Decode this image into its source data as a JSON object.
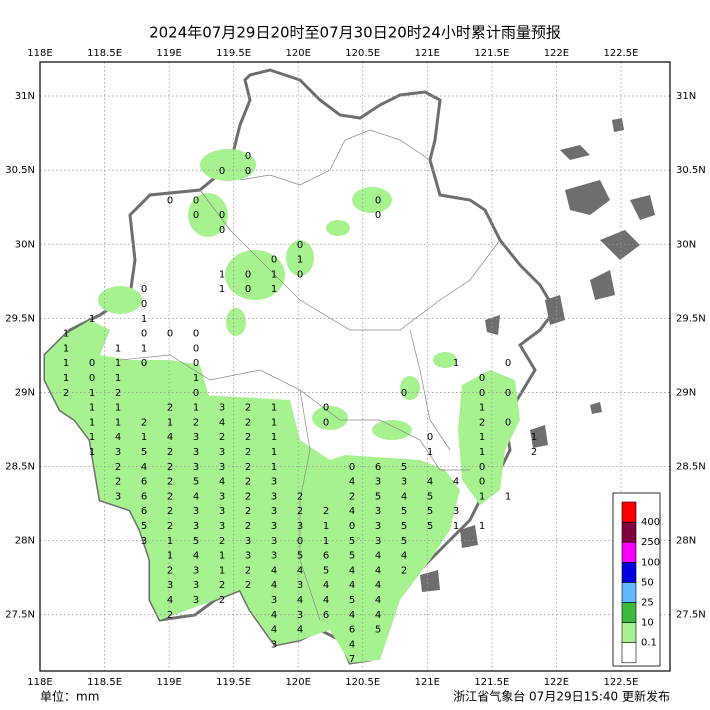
{
  "title": "2024年07月29日20时至07月30日20时24小时累计雨量预报",
  "unit_label": "单位：mm",
  "issuer": "浙江省气象台 07月29日15:40 更新发布",
  "map": {
    "xlim": [
      118,
      122.88
    ],
    "ylim": [
      27.12,
      31.23
    ],
    "xticks": [
      {
        "value": 118,
        "label": "118E"
      },
      {
        "value": 118.5,
        "label": "118.5E"
      },
      {
        "value": 119,
        "label": "119E"
      },
      {
        "value": 119.5,
        "label": "119.5E"
      },
      {
        "value": 120,
        "label": "120E"
      },
      {
        "value": 120.5,
        "label": "120.5E"
      },
      {
        "value": 121,
        "label": "121E"
      },
      {
        "value": 121.5,
        "label": "121.5E"
      },
      {
        "value": 122,
        "label": "122E"
      },
      {
        "value": 122.5,
        "label": "122.5E"
      }
    ],
    "yticks": [
      {
        "value": 27.5,
        "label": "27.5N"
      },
      {
        "value": 28,
        "label": "28N"
      },
      {
        "value": 28.5,
        "label": "28.5N"
      },
      {
        "value": 29,
        "label": "29N"
      },
      {
        "value": 29.5,
        "label": "29.5N"
      },
      {
        "value": 30,
        "label": "30N"
      },
      {
        "value": 30.5,
        "label": "30.5N"
      },
      {
        "value": 31,
        "label": "31N"
      }
    ],
    "grid": true,
    "rain_grid": [
      [
        null,
        null,
        null,
        null,
        null,
        null,
        null,
        0,
        null,
        null,
        null,
        null,
        null,
        null,
        null,
        null,
        null,
        null,
        null
      ],
      [
        null,
        null,
        null,
        null,
        null,
        null,
        0,
        0,
        null,
        null,
        null,
        null,
        null,
        null,
        null,
        null,
        null,
        null,
        null
      ],
      [
        null,
        null,
        null,
        null,
        null,
        null,
        null,
        null,
        null,
        null,
        null,
        null,
        null,
        null,
        null,
        null,
        null,
        null,
        null
      ],
      [
        null,
        null,
        null,
        null,
        0,
        0,
        null,
        null,
        null,
        null,
        null,
        null,
        0,
        null,
        null,
        null,
        null,
        null,
        null
      ],
      [
        null,
        null,
        null,
        null,
        null,
        0,
        0,
        null,
        null,
        null,
        null,
        null,
        0,
        null,
        null,
        null,
        null,
        null,
        null
      ],
      [
        null,
        null,
        null,
        null,
        null,
        null,
        0,
        null,
        null,
        null,
        null,
        null,
        null,
        null,
        null,
        null,
        null,
        null,
        null
      ],
      [
        null,
        null,
        null,
        null,
        null,
        null,
        null,
        null,
        null,
        0,
        null,
        null,
        null,
        null,
        null,
        null,
        null,
        null,
        null
      ],
      [
        null,
        null,
        null,
        null,
        null,
        null,
        null,
        null,
        0,
        1,
        null,
        null,
        null,
        null,
        null,
        null,
        null,
        null,
        null
      ],
      [
        null,
        null,
        null,
        null,
        null,
        null,
        1,
        0,
        1,
        0,
        null,
        null,
        null,
        null,
        null,
        null,
        null,
        null,
        null
      ],
      [
        null,
        null,
        null,
        0,
        null,
        null,
        1,
        0,
        1,
        null,
        null,
        null,
        null,
        null,
        null,
        null,
        null,
        null,
        null
      ],
      [
        null,
        null,
        null,
        0,
        null,
        null,
        null,
        null,
        null,
        null,
        null,
        null,
        null,
        null,
        null,
        null,
        null,
        null,
        null
      ],
      [
        null,
        1,
        null,
        1,
        null,
        null,
        null,
        null,
        null,
        null,
        null,
        null,
        null,
        null,
        null,
        null,
        null,
        null,
        null
      ],
      [
        1,
        null,
        null,
        0,
        0,
        0,
        null,
        null,
        null,
        null,
        null,
        null,
        null,
        null,
        null,
        null,
        null,
        null,
        null
      ],
      [
        1,
        null,
        1,
        1,
        null,
        0,
        null,
        null,
        null,
        null,
        null,
        null,
        null,
        null,
        null,
        null,
        null,
        null,
        null
      ],
      [
        1,
        0,
        1,
        0,
        null,
        0,
        null,
        null,
        null,
        null,
        null,
        null,
        null,
        null,
        null,
        1,
        null,
        0,
        null
      ],
      [
        1,
        0,
        1,
        null,
        null,
        1,
        null,
        null,
        null,
        null,
        null,
        null,
        null,
        null,
        null,
        null,
        0,
        null,
        null
      ],
      [
        2,
        1,
        2,
        null,
        null,
        0,
        null,
        null,
        null,
        null,
        null,
        null,
        null,
        0,
        null,
        null,
        0,
        0,
        null
      ],
      [
        null,
        1,
        1,
        null,
        2,
        1,
        3,
        2,
        1,
        null,
        0,
        null,
        null,
        null,
        null,
        null,
        1,
        null,
        null
      ],
      [
        null,
        1,
        1,
        2,
        1,
        2,
        4,
        2,
        1,
        null,
        0,
        null,
        null,
        null,
        null,
        null,
        2,
        0,
        null
      ],
      [
        null,
        1,
        4,
        1,
        4,
        3,
        2,
        2,
        1,
        null,
        null,
        null,
        null,
        null,
        0,
        null,
        1,
        null,
        1
      ],
      [
        null,
        1,
        3,
        5,
        2,
        3,
        3,
        2,
        1,
        null,
        null,
        null,
        null,
        null,
        1,
        null,
        1,
        null,
        2
      ],
      [
        null,
        null,
        2,
        4,
        2,
        3,
        3,
        2,
        1,
        null,
        null,
        0,
        6,
        5,
        null,
        null,
        0,
        null,
        null
      ],
      [
        null,
        null,
        2,
        6,
        2,
        5,
        4,
        2,
        3,
        null,
        null,
        4,
        3,
        3,
        4,
        4,
        0,
        null,
        null
      ],
      [
        null,
        null,
        3,
        6,
        2,
        4,
        3,
        2,
        3,
        2,
        null,
        2,
        5,
        4,
        5,
        null,
        1,
        1,
        null
      ],
      [
        null,
        null,
        null,
        6,
        2,
        3,
        3,
        2,
        3,
        2,
        2,
        4,
        3,
        5,
        5,
        3,
        null,
        null,
        null
      ],
      [
        null,
        null,
        null,
        5,
        2,
        3,
        3,
        2,
        3,
        3,
        1,
        0,
        3,
        5,
        5,
        1,
        1,
        null,
        null
      ],
      [
        null,
        null,
        null,
        3,
        1,
        5,
        2,
        3,
        3,
        0,
        1,
        5,
        3,
        5,
        null,
        null,
        null,
        null,
        null
      ],
      [
        null,
        null,
        null,
        null,
        1,
        4,
        1,
        3,
        3,
        5,
        6,
        5,
        4,
        4,
        null,
        null,
        null,
        null,
        null
      ],
      [
        null,
        null,
        null,
        null,
        2,
        3,
        1,
        2,
        4,
        4,
        5,
        4,
        4,
        2,
        null,
        null,
        null,
        null,
        null
      ],
      [
        null,
        null,
        null,
        null,
        3,
        3,
        2,
        2,
        4,
        3,
        4,
        4,
        4,
        null,
        null,
        null,
        null,
        null,
        null
      ],
      [
        null,
        null,
        null,
        null,
        4,
        3,
        2,
        null,
        3,
        4,
        4,
        5,
        4,
        null,
        null,
        null,
        null,
        null,
        null
      ],
      [
        null,
        null,
        null,
        null,
        2,
        null,
        null,
        null,
        4,
        3,
        6,
        4,
        4,
        null,
        null,
        null,
        null,
        null,
        null
      ],
      [
        null,
        null,
        null,
        null,
        null,
        null,
        null,
        null,
        4,
        4,
        null,
        6,
        5,
        null,
        null,
        null,
        null,
        null,
        null
      ],
      [
        null,
        null,
        null,
        null,
        null,
        null,
        null,
        null,
        3,
        null,
        null,
        4,
        null,
        null,
        null,
        null,
        null,
        null,
        null
      ],
      [
        null,
        null,
        null,
        null,
        null,
        null,
        null,
        null,
        null,
        null,
        null,
        7,
        null,
        null,
        null,
        null,
        null,
        null,
        null
      ]
    ]
  },
  "legend": {
    "levels": [
      0.1,
      10,
      25,
      50,
      100,
      250,
      400
    ],
    "colors": [
      "#ffffff",
      "#a6f28f",
      "#3dba3d",
      "#61b8ff",
      "#0000e1",
      "#fa00fa",
      "#800040",
      "#ff0000"
    ]
  }
}
